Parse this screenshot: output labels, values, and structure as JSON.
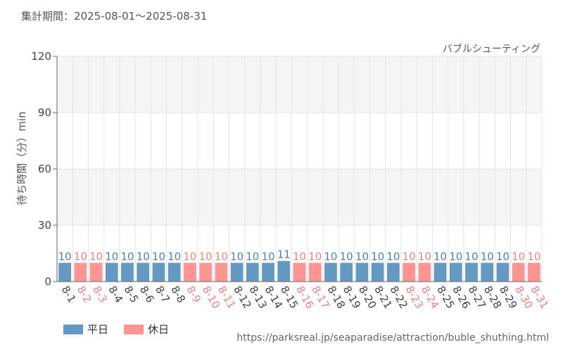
{
  "period_label": "集計期間：2025-08-01～2025-08-31",
  "source_url": "https://parksreal.jp/seaparadise/attraction/buble_shuthing.html",
  "colors": {
    "weekday": "#6699c2",
    "holiday": "#ff9494",
    "weekday_text": "#4f7fab",
    "holiday_text": "#f08080",
    "band": "#f5f5f5",
    "grid": "#e4e4e4"
  },
  "legend": [
    {
      "label": "平日",
      "color": "#6699c2"
    },
    {
      "label": "休日",
      "color": "#ff9494"
    }
  ],
  "chart_data": {
    "type": "bar",
    "title": "バブルシューティング",
    "ylabel": "待ち時間（分）min",
    "xlabel": "",
    "ylim": [
      0,
      120
    ],
    "yticks": [
      0,
      30,
      60,
      90,
      120
    ],
    "grid": true,
    "legend_position": "bottom-left",
    "categories": [
      "8-1",
      "8-2",
      "8-3",
      "8-4",
      "8-5",
      "8-6",
      "8-7",
      "8-8",
      "8-9",
      "8-10",
      "8-11",
      "8-12",
      "8-13",
      "8-14",
      "8-15",
      "8-16",
      "8-17",
      "8-18",
      "8-19",
      "8-20",
      "8-21",
      "8-22",
      "8-23",
      "8-24",
      "8-25",
      "8-26",
      "8-27",
      "8-28",
      "8-29",
      "8-30",
      "8-31"
    ],
    "values": [
      10,
      10,
      10,
      10,
      10,
      10,
      10,
      10,
      10,
      10,
      10,
      10,
      10,
      10,
      11,
      10,
      10,
      10,
      10,
      10,
      10,
      10,
      10,
      10,
      10,
      10,
      10,
      10,
      10,
      10,
      10
    ],
    "day_type": [
      "weekday",
      "holiday",
      "holiday",
      "weekday",
      "weekday",
      "weekday",
      "weekday",
      "weekday",
      "holiday",
      "holiday",
      "holiday",
      "weekday",
      "weekday",
      "weekday",
      "weekday",
      "holiday",
      "holiday",
      "weekday",
      "weekday",
      "weekday",
      "weekday",
      "weekday",
      "holiday",
      "holiday",
      "weekday",
      "weekday",
      "weekday",
      "weekday",
      "weekday",
      "holiday",
      "holiday"
    ]
  }
}
